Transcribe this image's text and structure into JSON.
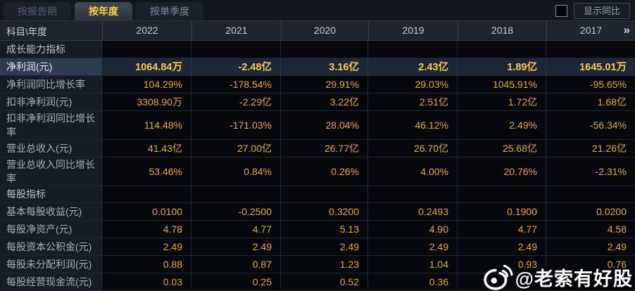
{
  "tabs": [
    {
      "label": "按报告期",
      "active": false
    },
    {
      "label": "按年度",
      "active": true
    },
    {
      "label": "按单季度",
      "active": false
    }
  ],
  "controls": {
    "show_yoy_label": "显示同比",
    "checkbox_checked": false
  },
  "table": {
    "corner_header": "科目\\年度",
    "year_headers": [
      "2022",
      "2021",
      "2020",
      "2019",
      "2018",
      "2017"
    ],
    "more_icon": "»",
    "rows": [
      {
        "type": "section",
        "label": "成长能力指标",
        "values": [
          "",
          "",
          "",
          "",
          "",
          ""
        ]
      },
      {
        "type": "highlight",
        "label": "净利润(元)",
        "values": [
          "1064.84万",
          "-2.48亿",
          "3.16亿",
          "2.43亿",
          "1.89亿",
          "1645.01万"
        ]
      },
      {
        "type": "data",
        "label": "净利润同比增长率",
        "values": [
          "104.29%",
          "-178.54%",
          "29.91%",
          "29.03%",
          "1045.91%",
          "-95.65%"
        ]
      },
      {
        "type": "data",
        "label": "扣非净利润(元)",
        "values": [
          "3308.90万",
          "-2.29亿",
          "3.22亿",
          "2.51亿",
          "1.72亿",
          "1.68亿"
        ]
      },
      {
        "type": "data",
        "label": "扣非净利润同比增长率",
        "values": [
          "114.48%",
          "-171.03%",
          "28.04%",
          "46.12%",
          "2.49%",
          "-56.34%"
        ]
      },
      {
        "type": "data",
        "label": "营业总收入(元)",
        "values": [
          "41.43亿",
          "27.00亿",
          "26.77亿",
          "26.70亿",
          "25.68亿",
          "21.26亿"
        ]
      },
      {
        "type": "data",
        "label": "营业总收入同比增长率",
        "values": [
          "53.46%",
          "0.84%",
          "0.26%",
          "4.00%",
          "20.76%",
          "-2.31%"
        ]
      },
      {
        "type": "section",
        "label": "每股指标",
        "values": [
          "",
          "",
          "",
          "",
          "",
          ""
        ]
      },
      {
        "type": "data",
        "label": "基本每股收益(元)",
        "values": [
          "0.0100",
          "-0.2500",
          "0.3200",
          "0.2493",
          "0.1900",
          "0.0200"
        ]
      },
      {
        "type": "data",
        "label": "每股净资产(元)",
        "values": [
          "4.78",
          "4.77",
          "5.13",
          "4.90",
          "4.77",
          "4.58"
        ]
      },
      {
        "type": "data",
        "label": "每股资本公积金(元)",
        "values": [
          "2.49",
          "2.49",
          "2.49",
          "2.49",
          "2.49",
          "2.49"
        ]
      },
      {
        "type": "data",
        "label": "每股未分配利润(元)",
        "values": [
          "0.88",
          "0.87",
          "1.23",
          "1.04",
          "0.93",
          "0.76"
        ]
      },
      {
        "type": "data",
        "label": "每股经营现金流(元)",
        "values": [
          "0.03",
          "0.25",
          "0.52",
          "0.36",
          "",
          ""
        ]
      }
    ]
  },
  "watermark": {
    "text": "@老索有好股"
  },
  "colors": {
    "background": "#0b0e13",
    "value_gold": "#e9a83e",
    "highlight_gold": "#ffc94d",
    "active_tab_text": "#ffd23e",
    "header_text": "#c3ccd7",
    "label_text": "#a6b1be"
  }
}
